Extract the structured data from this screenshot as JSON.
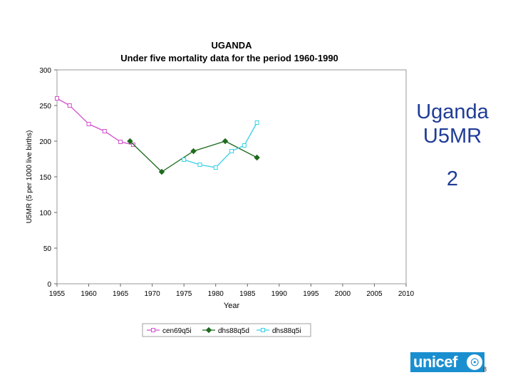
{
  "side": {
    "title_line1": "Uganda",
    "title_line2": "U5MR",
    "number": "2"
  },
  "logo": {
    "text": "unicef",
    "emblem_icon": "unicef-emblem-icon"
  },
  "page_number": "8",
  "colors": {
    "cen69q5i": "#d44fcf",
    "dhs88q5d": "#1e6b1e",
    "dhs88q5i": "#3ad0e6",
    "side_title": "#1f3c96",
    "logo_bg": "#1a8fd0"
  },
  "chart_data": {
    "type": "line",
    "title": "UGANDA",
    "subtitle": "Under five mortality data for the period 1960-1990",
    "xlabel": "Year",
    "ylabel": "U5MR (5 per 1000 live births)",
    "xlim": [
      1955,
      2010
    ],
    "ylim": [
      0,
      300
    ],
    "xticks": [
      1955,
      1960,
      1965,
      1970,
      1975,
      1980,
      1985,
      1990,
      1995,
      2000,
      2005,
      2010
    ],
    "yticks": [
      0,
      50,
      100,
      150,
      200,
      250,
      300
    ],
    "legend_position": "bottom",
    "series": [
      {
        "name": "cen69q5i",
        "marker": "square",
        "points": [
          [
            1955,
            260
          ],
          [
            1957,
            250
          ],
          [
            1960,
            224
          ],
          [
            1962.5,
            214
          ],
          [
            1965,
            199
          ],
          [
            1967,
            195
          ]
        ]
      },
      {
        "name": "dhs88q5d",
        "marker": "diamond",
        "points": [
          [
            1966.5,
            200
          ],
          [
            1971.5,
            157
          ],
          [
            1976.5,
            186
          ],
          [
            1981.5,
            200
          ],
          [
            1986.5,
            177
          ]
        ]
      },
      {
        "name": "dhs88q5i",
        "marker": "square",
        "points": [
          [
            1975,
            174
          ],
          [
            1977.5,
            167
          ],
          [
            1980,
            163
          ],
          [
            1982.5,
            186
          ],
          [
            1984.5,
            194
          ],
          [
            1986.5,
            226
          ]
        ]
      }
    ]
  }
}
